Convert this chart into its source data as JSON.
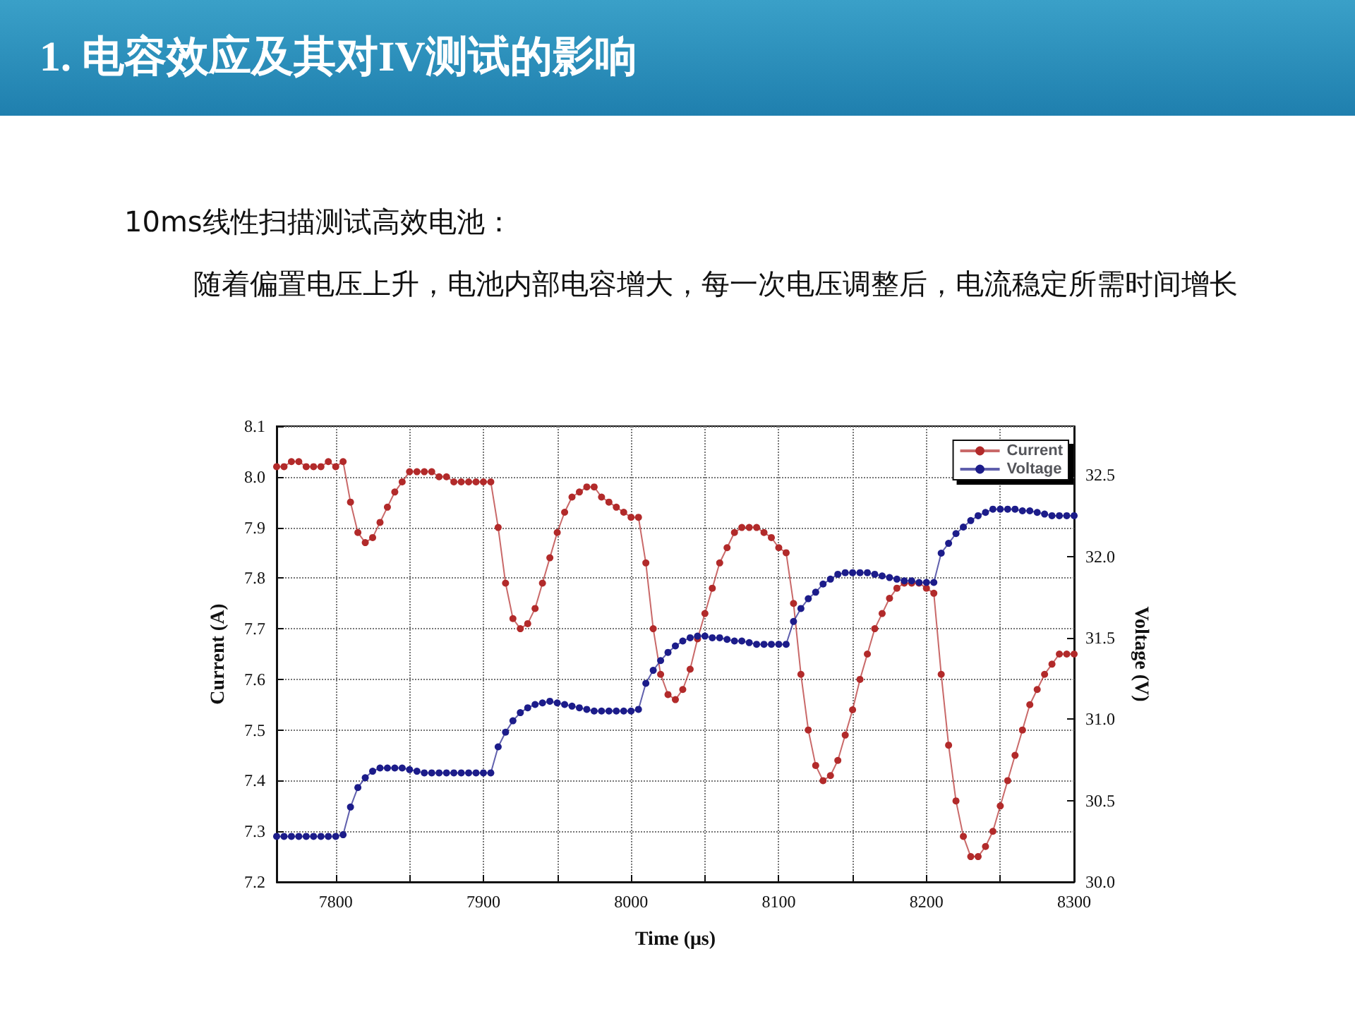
{
  "chart_data": {
    "type": "line",
    "title": "1. 电容效应及其对IV测试的影响",
    "subtitle": "10ms线性扫描测试高效电池：",
    "annotations": [
      "随着偏置电压上升，电池内部电容增大，每一次电压调整后，电流稳定所需时间增长"
    ],
    "xlabel": "Time (μs)",
    "ylabel": "Current (A)",
    "y2label": "Voltage (V)",
    "x": [
      7760,
      7765,
      7770,
      7775,
      7780,
      7785,
      7790,
      7795,
      7800,
      7805,
      7810,
      7815,
      7820,
      7825,
      7830,
      7835,
      7840,
      7845,
      7850,
      7855,
      7860,
      7865,
      7870,
      7875,
      7880,
      7885,
      7890,
      7895,
      7900,
      7905,
      7910,
      7915,
      7920,
      7925,
      7930,
      7935,
      7940,
      7945,
      7950,
      7955,
      7960,
      7965,
      7970,
      7975,
      7980,
      7985,
      7990,
      7995,
      8000,
      8005,
      8010,
      8015,
      8020,
      8025,
      8030,
      8035,
      8040,
      8045,
      8050,
      8055,
      8060,
      8065,
      8070,
      8075,
      8080,
      8085,
      8090,
      8095,
      8100,
      8105,
      8110,
      8115,
      8120,
      8125,
      8130,
      8135,
      8140,
      8145,
      8150,
      8155,
      8160,
      8165,
      8170,
      8175,
      8180,
      8185,
      8190,
      8195,
      8200,
      8205,
      8210,
      8215,
      8220,
      8225,
      8230,
      8235,
      8240,
      8245,
      8250,
      8255,
      8260,
      8265,
      8270,
      8275,
      8280,
      8285,
      8290,
      8295,
      8300
    ],
    "series": [
      {
        "name": "Current",
        "color": "#b22a2a",
        "values": [
          8.02,
          8.02,
          8.03,
          8.03,
          8.02,
          8.02,
          8.02,
          8.03,
          8.02,
          8.03,
          7.95,
          7.89,
          7.87,
          7.88,
          7.91,
          7.94,
          7.97,
          7.99,
          8.01,
          8.01,
          8.01,
          8.01,
          8.0,
          8.0,
          7.99,
          7.99,
          7.99,
          7.99,
          7.99,
          7.99,
          7.9,
          7.79,
          7.72,
          7.7,
          7.71,
          7.74,
          7.79,
          7.84,
          7.89,
          7.93,
          7.96,
          7.97,
          7.98,
          7.98,
          7.96,
          7.95,
          7.94,
          7.93,
          7.92,
          7.92,
          7.83,
          7.7,
          7.61,
          7.57,
          7.56,
          7.58,
          7.62,
          7.68,
          7.73,
          7.78,
          7.83,
          7.86,
          7.89,
          7.9,
          7.9,
          7.9,
          7.89,
          7.88,
          7.86,
          7.85,
          7.75,
          7.61,
          7.5,
          7.43,
          7.4,
          7.41,
          7.44,
          7.49,
          7.54,
          7.6,
          7.65,
          7.7,
          7.73,
          7.76,
          7.78,
          7.79,
          7.79,
          7.79,
          7.78,
          7.77,
          7.61,
          7.47,
          7.36,
          7.29,
          7.25,
          7.25,
          7.27,
          7.3,
          7.35,
          7.4,
          7.45,
          7.5,
          7.55,
          7.58,
          7.61,
          7.63,
          7.65,
          7.65,
          7.65
        ]
      },
      {
        "name": "Voltage",
        "color": "#1c1c8a",
        "axis": "y2",
        "values": [
          30.28,
          30.28,
          30.28,
          30.28,
          30.28,
          30.28,
          30.28,
          30.28,
          30.28,
          30.29,
          30.46,
          30.58,
          30.64,
          30.68,
          30.7,
          30.7,
          30.7,
          30.7,
          30.69,
          30.68,
          30.67,
          30.67,
          30.67,
          30.67,
          30.67,
          30.67,
          30.67,
          30.67,
          30.67,
          30.67,
          30.83,
          30.92,
          30.99,
          31.04,
          31.07,
          31.09,
          31.1,
          31.11,
          31.1,
          31.09,
          31.08,
          31.07,
          31.06,
          31.05,
          31.05,
          31.05,
          31.05,
          31.05,
          31.05,
          31.06,
          31.22,
          31.3,
          31.36,
          31.41,
          31.45,
          31.48,
          31.5,
          31.51,
          31.51,
          31.5,
          31.5,
          31.49,
          31.48,
          31.48,
          31.47,
          31.46,
          31.46,
          31.46,
          31.46,
          31.46,
          31.6,
          31.68,
          31.74,
          31.78,
          31.83,
          31.86,
          31.89,
          31.9,
          31.9,
          31.9,
          31.9,
          31.89,
          31.88,
          31.87,
          31.86,
          31.85,
          31.85,
          31.84,
          31.84,
          31.84,
          32.02,
          32.08,
          32.14,
          32.18,
          32.22,
          32.25,
          32.27,
          32.29,
          32.29,
          32.29,
          32.29,
          32.28,
          32.28,
          32.27,
          32.26,
          32.25,
          32.25,
          32.25,
          32.25
        ]
      }
    ],
    "xlim": [
      7760,
      8300
    ],
    "xticks": [
      7800,
      {
        "value": 7850,
        "label": null
      },
      7900,
      {
        "value": 7950,
        "label": null
      },
      8000,
      {
        "value": 8050,
        "label": null
      },
      8100,
      {
        "value": 8150,
        "label": null
      },
      8200,
      {
        "value": 8250,
        "label": null
      },
      8300
    ],
    "ylim": [
      7.2,
      8.1
    ],
    "yticks": [
      7.2,
      7.3,
      7.4,
      7.5,
      7.6,
      7.7,
      7.8,
      7.9,
      {
        "value": 8,
        "label": "8.0"
      },
      8.1
    ],
    "y2lim": [
      30,
      32.8
    ],
    "y2ticks": [
      {
        "value": 30,
        "label": "30.0"
      },
      30.5,
      {
        "value": 31,
        "label": "31.0"
      },
      31.5,
      {
        "value": 32,
        "label": "32.0"
      },
      32.5
    ],
    "grid": true,
    "legend": "top right",
    "marker": "circle",
    "line_style": "solid"
  }
}
